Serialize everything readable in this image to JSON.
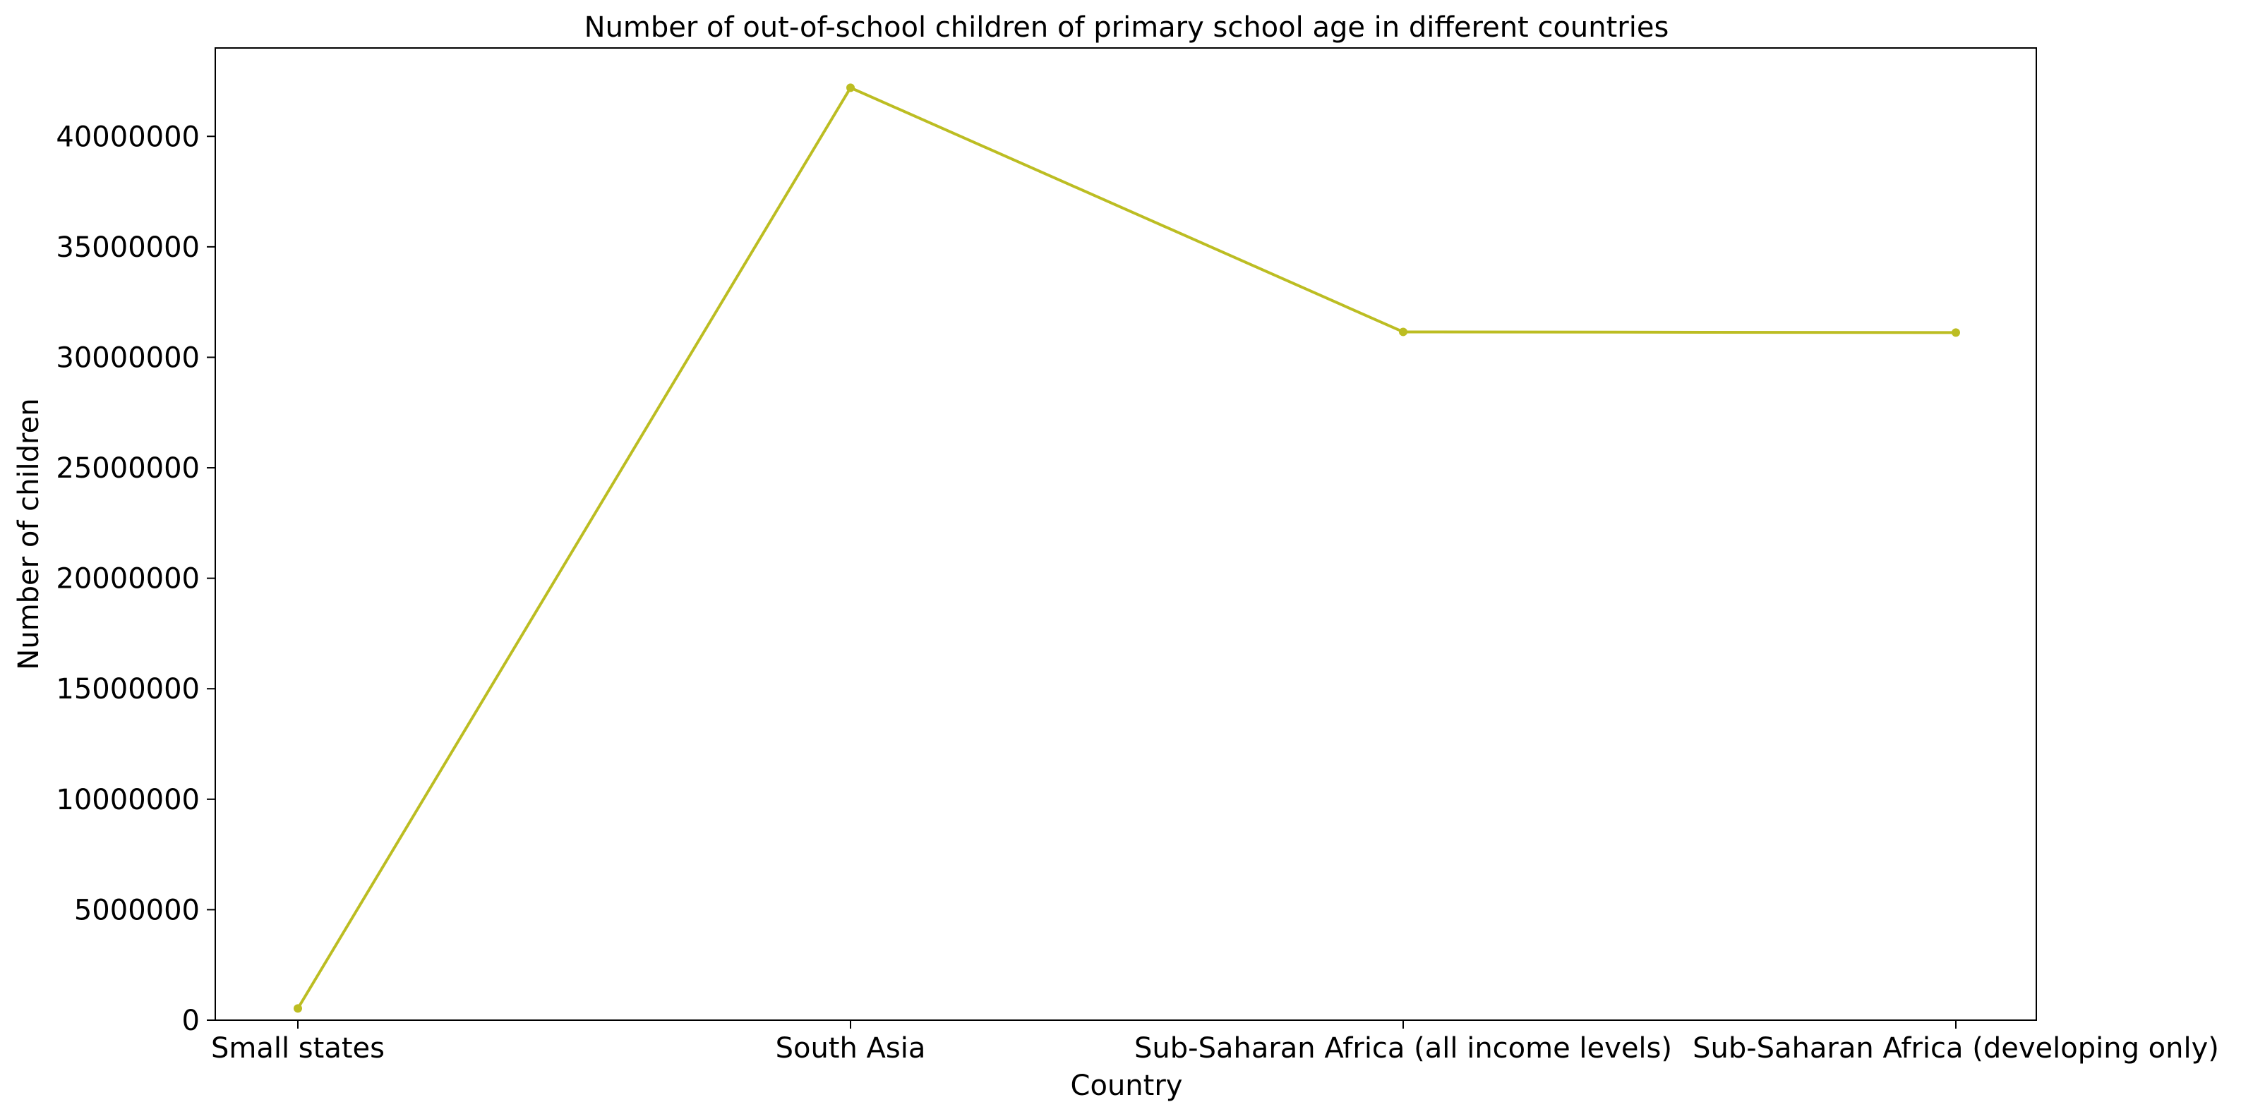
{
  "chart_data": {
    "type": "line",
    "title": "Number of out-of-school children of primary school age in different countries",
    "xlabel": "Country",
    "ylabel": "Number of children",
    "categories": [
      "Small states",
      "South Asia",
      "Sub-Saharan Africa (all income levels)",
      "Sub-Saharan Africa (developing only)"
    ],
    "series": [
      {
        "values": [
          530000,
          42200000,
          31150000,
          31120000
        ],
        "color": "#bcbd22"
      }
    ],
    "ylim": [
      0,
      44000000
    ],
    "yticks": [
      0,
      5000000,
      10000000,
      15000000,
      20000000,
      25000000,
      30000000,
      35000000,
      40000000
    ],
    "ytick_labels": [
      "0",
      "5000000",
      "10000000",
      "15000000",
      "20000000",
      "25000000",
      "30000000",
      "35000000",
      "40000000"
    ],
    "grid": false,
    "legend": "none"
  }
}
